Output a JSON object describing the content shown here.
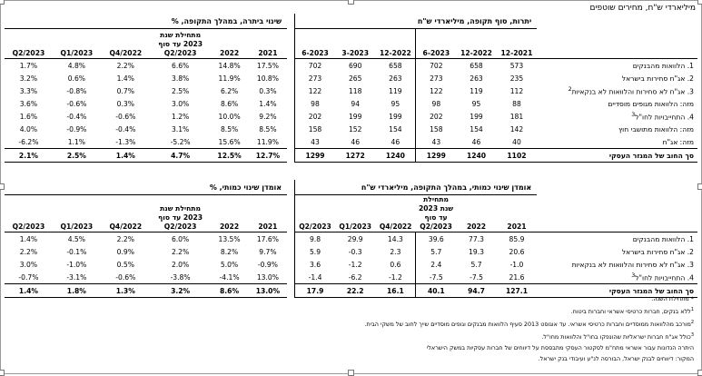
{
  "unit": "מיליארדי ש\"ח, מחירים שוטפים",
  "table1": {
    "group_left": "שינוי ביתרה, במהלך התקופה, %",
    "group_right": "יתרות, סוף תקופה, מיליארדי ש\"ח",
    "headers": [
      "Q2/2023",
      "Q1/2023",
      "Q4/2022",
      "מתחילת שנת 2023 עד סוף Q2/2023",
      "2022",
      "2021",
      "6-2023",
      "3-2023",
      "12-2022",
      "6-2023",
      "12-2022",
      "12-2021"
    ],
    "rows": [
      {
        "label": "1. הלוואות מהבנקים",
        "values": [
          "1.7%",
          "4.8%",
          "2.2%",
          "6.6%",
          "14.8%",
          "17.5%",
          "702",
          "690",
          "658",
          "702",
          "658",
          "573"
        ]
      },
      {
        "label": "2. אג\"ח סחירות בישראל",
        "values": [
          "3.2%",
          "0.6%",
          "1.4%",
          "3.8%",
          "11.9%",
          "10.8%",
          "273",
          "265",
          "263",
          "273",
          "263",
          "235"
        ]
      },
      {
        "label": "3. אג\"ח לא סחירות והלוואות לא בנקאיות",
        "sup": "2",
        "values": [
          "3.3%",
          "-0.8%",
          "0.7%",
          "2.5%",
          "6.2%",
          "0.3%",
          "122",
          "118",
          "119",
          "122",
          "119",
          "112"
        ]
      },
      {
        "label": "מזה: הלוואות מגופים מוסדיים",
        "values": [
          "3.6%",
          "-0.6%",
          "0.3%",
          "3.0%",
          "8.6%",
          "1.4%",
          "98",
          "94",
          "95",
          "98",
          "95",
          "88"
        ]
      },
      {
        "label": "4. התחייבויות לחו\"ל",
        "sup": "3",
        "values": [
          "1.6%",
          "-0.4%",
          "-0.6%",
          "1.2%",
          "10.0%",
          "9.2%",
          "202",
          "199",
          "199",
          "202",
          "199",
          "181"
        ]
      },
      {
        "label": "מזה: הלוואות מתושבי חוץ",
        "values": [
          "4.0%",
          "-0.9%",
          "-0.4%",
          "3.1%",
          "8.5%",
          "8.5%",
          "158",
          "152",
          "154",
          "158",
          "154",
          "142"
        ]
      },
      {
        "label": "מזה: אג\"ח",
        "values": [
          "-6.2%",
          "1.1%",
          "-1.3%",
          "-5.2%",
          "15.6%",
          "11.9%",
          "43",
          "46",
          "46",
          "43",
          "46",
          "40"
        ]
      }
    ],
    "total": {
      "label": "סך החוב של המגזר העסקי",
      "values": [
        "2.1%",
        "2.5%",
        "1.4%",
        "4.7%",
        "12.5%",
        "12.7%",
        "1299",
        "1272",
        "1240",
        "1299",
        "1240",
        "1102"
      ]
    }
  },
  "table2": {
    "group_left": "אומדן שינוי כמותי, %",
    "group_right": "אומדן שינוי כמותי, במהלך התקופה, מיליארדי ש\"ח",
    "headers": [
      "Q2/2023",
      "Q1/2023",
      "Q4/2022",
      "מתחילת שנת 2023 עד סוף Q2/2023",
      "2022",
      "2021",
      "Q2/2023",
      "Q1/2023",
      "Q4/2022",
      "מתחילת שנת 2023 עד סוף Q2/2023",
      "2022",
      "2021"
    ],
    "rows": [
      {
        "label": "1. הלוואות מהבנקים",
        "values": [
          "1.4%",
          "4.5%",
          "2.2%",
          "6.0%",
          "13.5%",
          "17.6%",
          "9.8",
          "29.9",
          "14.3",
          "39.6",
          "77.3",
          "85.9"
        ]
      },
      {
        "label": "2. אג\"ח סחירות בישראל",
        "values": [
          "2.2%",
          "-0.1%",
          "0.9%",
          "2.2%",
          "8.2%",
          "9.7%",
          "5.9",
          "-0.3",
          "2.3",
          "5.7",
          "19.3",
          "20.6"
        ]
      },
      {
        "label": "3. אג\"ח לא סחירות והלוואות לא בנקאיות",
        "values": [
          "3.0%",
          "-1.0%",
          "0.5%",
          "2.0%",
          "5.0%",
          "-0.9%",
          "3.6",
          "-1.2",
          "0.6",
          "2.4",
          "5.7",
          "-1.0"
        ]
      },
      {
        "label": "4. התחייבויות לחו\"ל",
        "sup": "3",
        "values": [
          "-0.7%",
          "-3.1%",
          "-0.6%",
          "-3.8%",
          "-4.1%",
          "13.0%",
          "-1.4",
          "-6.2",
          "-1.2",
          "-7.5",
          "-7.5",
          "21.6"
        ]
      }
    ],
    "total": {
      "label": "סך החוב של המגזר העסקי",
      "values": [
        "1.4%",
        "1.8%",
        "1.3%",
        "3.2%",
        "8.6%",
        "13.0%",
        "17.9",
        "22.2",
        "16.1",
        "40.1",
        "94.7",
        "127.1"
      ]
    }
  },
  "notes": [
    {
      "sup": "",
      "text": "* מתחילת השנה."
    },
    {
      "sup": "1",
      "text": "ללא בנקים, חברות כרטיסי אשראי וחברות ביטוח."
    },
    {
      "sup": "2",
      "text": "מורכב מהלוואות ממוסדיים וחברות כרטיסי אשראי. עד אוגוסט 2013 סעיף הלוואות מבנקים וגופים מוסדיים שייך לחוב של משקי הבית."
    },
    {
      "sup": "3",
      "text": "כולל אג\"ח חברות ישראליות שהונפקו בחו\"ל והלוואות מחו\"ל."
    },
    {
      "sup": "",
      "text": "היתרה הנדונות עבור אשראי מתח\"מ לסקטור העסקי מתבססת על דיווחים של חברות עסקיות במשק הישראלי"
    },
    {
      "sup": "",
      "text": "המקור: דיווחים לבנק ישראל, הבורסה לנ\"ע ועיבודי בנק ישראל."
    }
  ]
}
